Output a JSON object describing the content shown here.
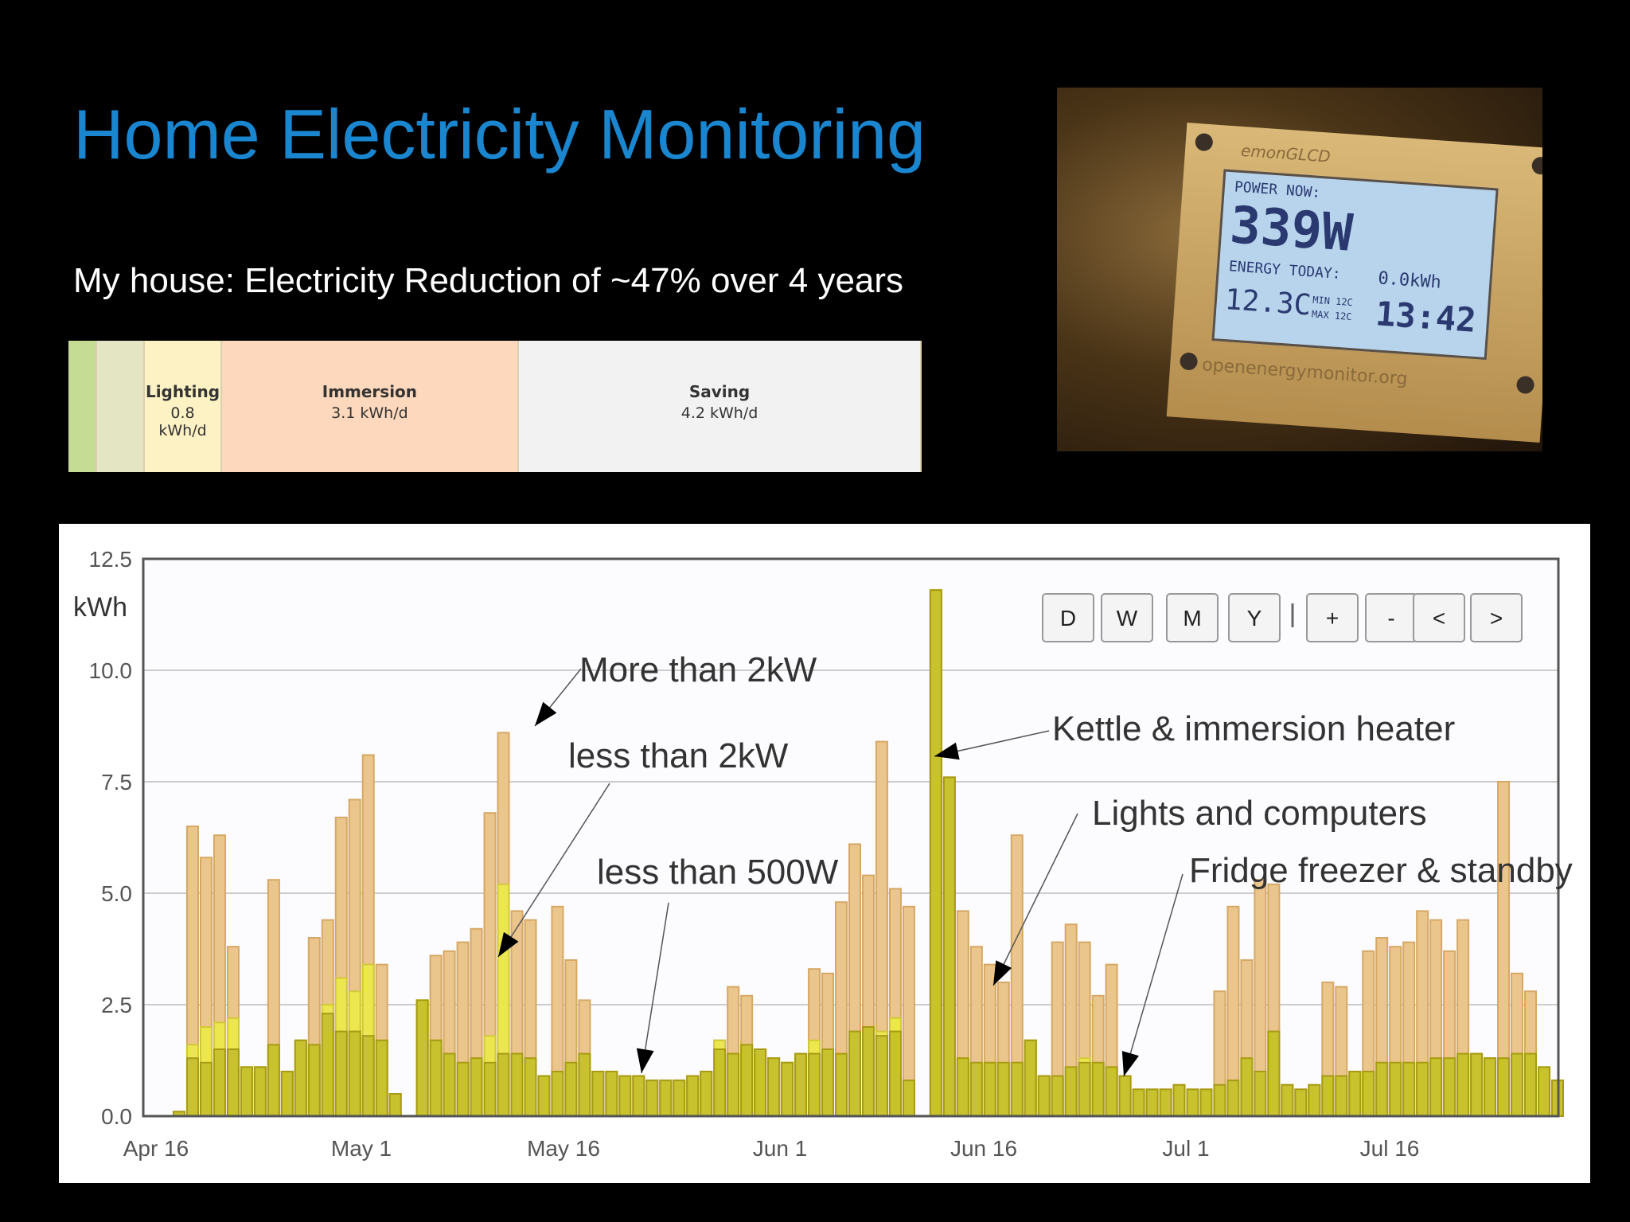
{
  "slide": {
    "title": "Home Electricity Monitoring",
    "subtitle": "My house: Electricity Reduction of ~47% over 4 years"
  },
  "breakdown": {
    "segments": [
      {
        "name": "",
        "value": "",
        "kwh": 0.3,
        "color": "#c5dc95"
      },
      {
        "name": "",
        "value": "",
        "kwh": 0.5,
        "color": "#e4e5c3"
      },
      {
        "name": "Lighting",
        "value": "0.8 kWh/d",
        "kwh": 0.8,
        "color": "#fdf2c4"
      },
      {
        "name": "Immersion",
        "value": "3.1 kWh/d",
        "kwh": 3.1,
        "color": "#fdd8bd"
      },
      {
        "name": "Saving",
        "value": "4.2 kWh/d",
        "kwh": 4.2,
        "color": "#f2f2f2"
      }
    ]
  },
  "photo": {
    "brand": "emonGLCD",
    "power_label": "POWER NOW:",
    "power_value": "339W",
    "energy_label": "ENERGY TODAY:",
    "energy_value": "0.0kWh",
    "temp": "12.3C",
    "min": "MIN 12C",
    "max": "MAX 12C",
    "time": "13:42",
    "url": "openenergymonitor.org"
  },
  "chart_data": {
    "type": "bar",
    "title": "",
    "xlabel": "",
    "ylabel": "kWh",
    "ylim": [
      0,
      12.5
    ],
    "yticks": [
      "0.0",
      "2.5",
      "5.0",
      "7.5",
      "10.0",
      "12.5"
    ],
    "x_tick_labels": [
      "Apr 16",
      "May 1",
      "May 16",
      "Jun 1",
      "Jun 16",
      "Jul 1",
      "Jul 16"
    ],
    "stacked": true,
    "series_colors": {
      "less than 500W": "#c7c22e",
      "less than 2kW": "#ece74f",
      "More than 2kW": "#ebc68c"
    },
    "bars": [
      {
        "day": 0,
        "low": 0.1,
        "mid": 0.1,
        "high": 0.1
      },
      {
        "day": 1,
        "low": 1.3,
        "mid": 1.6,
        "high": 6.5
      },
      {
        "day": 2,
        "low": 1.2,
        "mid": 2.0,
        "high": 5.8
      },
      {
        "day": 3,
        "low": 1.5,
        "mid": 2.1,
        "high": 6.3
      },
      {
        "day": 4,
        "low": 1.5,
        "mid": 2.2,
        "high": 3.8
      },
      {
        "day": 5,
        "low": 1.1,
        "mid": 1.1,
        "high": 1.1
      },
      {
        "day": 6,
        "low": 1.1,
        "mid": 1.1,
        "high": 1.1
      },
      {
        "day": 7,
        "low": 1.6,
        "mid": 1.6,
        "high": 5.3
      },
      {
        "day": 8,
        "low": 1.0,
        "mid": 1.0,
        "high": 1.0
      },
      {
        "day": 9,
        "low": 1.7,
        "mid": 1.7,
        "high": 1.7
      },
      {
        "day": 10,
        "low": 1.6,
        "mid": 1.6,
        "high": 4.0
      },
      {
        "day": 11,
        "low": 2.3,
        "mid": 2.5,
        "high": 4.4
      },
      {
        "day": 12,
        "low": 1.9,
        "mid": 3.1,
        "high": 6.7
      },
      {
        "day": 13,
        "low": 1.9,
        "mid": 2.8,
        "high": 7.1
      },
      {
        "day": 14,
        "low": 1.8,
        "mid": 3.4,
        "high": 8.1
      },
      {
        "day": 15,
        "low": 1.7,
        "mid": 1.7,
        "high": 3.4
      },
      {
        "day": 16,
        "low": 0.5,
        "mid": 0.5,
        "high": 0.5
      },
      {
        "day": 17,
        "low": null,
        "mid": null,
        "high": null
      },
      {
        "day": 18,
        "low": 2.6,
        "mid": 2.6,
        "high": 2.6
      },
      {
        "day": 19,
        "low": 1.7,
        "mid": 1.7,
        "high": 3.6
      },
      {
        "day": 20,
        "low": 1.4,
        "mid": 1.4,
        "high": 3.7
      },
      {
        "day": 21,
        "low": 1.2,
        "mid": 1.2,
        "high": 3.9
      },
      {
        "day": 22,
        "low": 1.3,
        "mid": 1.3,
        "high": 4.2
      },
      {
        "day": 23,
        "low": 1.2,
        "mid": 1.8,
        "high": 6.8
      },
      {
        "day": 24,
        "low": 1.4,
        "mid": 5.2,
        "high": 8.6
      },
      {
        "day": 25,
        "low": 1.4,
        "mid": 1.4,
        "high": 4.6
      },
      {
        "day": 26,
        "low": 1.3,
        "mid": 1.3,
        "high": 4.4
      },
      {
        "day": 27,
        "low": 0.9,
        "mid": 0.9,
        "high": 0.9
      },
      {
        "day": 28,
        "low": 1.0,
        "mid": 1.0,
        "high": 4.7
      },
      {
        "day": 29,
        "low": 1.2,
        "mid": 1.2,
        "high": 3.5
      },
      {
        "day": 30,
        "low": 1.4,
        "mid": 1.4,
        "high": 2.6
      },
      {
        "day": 31,
        "low": 1.0,
        "mid": 1.0,
        "high": 1.0
      },
      {
        "day": 32,
        "low": 1.0,
        "mid": 1.0,
        "high": 1.0
      },
      {
        "day": 33,
        "low": 0.9,
        "mid": 0.9,
        "high": 0.9
      },
      {
        "day": 34,
        "low": 0.9,
        "mid": 0.9,
        "high": 0.9
      },
      {
        "day": 35,
        "low": 0.8,
        "mid": 0.8,
        "high": 0.8
      },
      {
        "day": 36,
        "low": 0.8,
        "mid": 0.8,
        "high": 0.8
      },
      {
        "day": 37,
        "low": 0.8,
        "mid": 0.8,
        "high": 0.8
      },
      {
        "day": 38,
        "low": 0.9,
        "mid": 0.9,
        "high": 0.9
      },
      {
        "day": 39,
        "low": 1.0,
        "mid": 1.0,
        "high": 1.0
      },
      {
        "day": 40,
        "low": 1.5,
        "mid": 1.7,
        "high": 1.7
      },
      {
        "day": 41,
        "low": 1.4,
        "mid": 1.4,
        "high": 2.9
      },
      {
        "day": 42,
        "low": 1.6,
        "mid": 1.6,
        "high": 2.7
      },
      {
        "day": 43,
        "low": 1.5,
        "mid": 1.5,
        "high": 1.5
      },
      {
        "day": 44,
        "low": 1.3,
        "mid": 1.3,
        "high": 1.3
      },
      {
        "day": 45,
        "low": 1.2,
        "mid": 1.2,
        "high": 1.2
      },
      {
        "day": 46,
        "low": 1.4,
        "mid": 1.4,
        "high": 1.4
      },
      {
        "day": 47,
        "low": 1.4,
        "mid": 1.7,
        "high": 3.3
      },
      {
        "day": 48,
        "low": 1.5,
        "mid": 1.5,
        "high": 3.2
      },
      {
        "day": 49,
        "low": 1.4,
        "mid": 1.4,
        "high": 4.8
      },
      {
        "day": 50,
        "low": 1.9,
        "mid": 1.9,
        "high": 6.1
      },
      {
        "day": 51,
        "low": 2.0,
        "mid": 2.0,
        "high": 5.4
      },
      {
        "day": 52,
        "low": 1.8,
        "mid": 1.9,
        "high": 8.4
      },
      {
        "day": 53,
        "low": 1.9,
        "mid": 2.2,
        "high": 5.1
      },
      {
        "day": 54,
        "low": 0.8,
        "mid": 0.8,
        "high": 4.7
      },
      {
        "day": 55,
        "low": null,
        "mid": null,
        "high": null
      },
      {
        "day": 56,
        "low": 11.8,
        "mid": 11.8,
        "high": 11.8
      },
      {
        "day": 57,
        "low": 7.6,
        "mid": 7.6,
        "high": 7.6
      },
      {
        "day": 58,
        "low": 1.3,
        "mid": 1.3,
        "high": 4.6
      },
      {
        "day": 59,
        "low": 1.2,
        "mid": 1.2,
        "high": 3.8
      },
      {
        "day": 60,
        "low": 1.2,
        "mid": 1.2,
        "high": 3.4
      },
      {
        "day": 61,
        "low": 1.2,
        "mid": 1.2,
        "high": 3.0
      },
      {
        "day": 62,
        "low": 1.2,
        "mid": 1.2,
        "high": 6.3
      },
      {
        "day": 63,
        "low": 1.7,
        "mid": 1.7,
        "high": 1.7
      },
      {
        "day": 64,
        "low": 0.9,
        "mid": 0.9,
        "high": 0.9
      },
      {
        "day": 65,
        "low": 0.9,
        "mid": 0.9,
        "high": 3.9
      },
      {
        "day": 66,
        "low": 1.1,
        "mid": 1.1,
        "high": 4.3
      },
      {
        "day": 67,
        "low": 1.2,
        "mid": 1.3,
        "high": 3.9
      },
      {
        "day": 68,
        "low": 1.2,
        "mid": 1.2,
        "high": 2.7
      },
      {
        "day": 69,
        "low": 1.1,
        "mid": 1.1,
        "high": 3.4
      },
      {
        "day": 70,
        "low": 0.9,
        "mid": 0.9,
        "high": 0.9
      },
      {
        "day": 71,
        "low": 0.6,
        "mid": 0.6,
        "high": 0.6
      },
      {
        "day": 72,
        "low": 0.6,
        "mid": 0.6,
        "high": 0.6
      },
      {
        "day": 73,
        "low": 0.6,
        "mid": 0.6,
        "high": 0.6
      },
      {
        "day": 74,
        "low": 0.7,
        "mid": 0.7,
        "high": 0.7
      },
      {
        "day": 75,
        "low": 0.6,
        "mid": 0.6,
        "high": 0.6
      },
      {
        "day": 76,
        "low": 0.6,
        "mid": 0.6,
        "high": 0.6
      },
      {
        "day": 77,
        "low": 0.7,
        "mid": 0.7,
        "high": 2.8
      },
      {
        "day": 78,
        "low": 0.8,
        "mid": 0.8,
        "high": 4.7
      },
      {
        "day": 79,
        "low": 1.3,
        "mid": 1.3,
        "high": 3.5
      },
      {
        "day": 80,
        "low": 1.0,
        "mid": 1.0,
        "high": 5.3
      },
      {
        "day": 81,
        "low": 1.9,
        "mid": 1.9,
        "high": 5.2
      },
      {
        "day": 82,
        "low": 0.7,
        "mid": 0.7,
        "high": 0.7
      },
      {
        "day": 83,
        "low": 0.6,
        "mid": 0.6,
        "high": 0.6
      },
      {
        "day": 84,
        "low": 0.7,
        "mid": 0.7,
        "high": 0.7
      },
      {
        "day": 85,
        "low": 0.9,
        "mid": 0.9,
        "high": 3.0
      },
      {
        "day": 86,
        "low": 0.9,
        "mid": 0.9,
        "high": 2.9
      },
      {
        "day": 87,
        "low": 1.0,
        "mid": 1.0,
        "high": 1.0
      },
      {
        "day": 88,
        "low": 1.0,
        "mid": 1.0,
        "high": 3.7
      },
      {
        "day": 89,
        "low": 1.2,
        "mid": 1.2,
        "high": 4.0
      },
      {
        "day": 90,
        "low": 1.2,
        "mid": 1.2,
        "high": 3.8
      },
      {
        "day": 91,
        "low": 1.2,
        "mid": 1.2,
        "high": 3.9
      },
      {
        "day": 92,
        "low": 1.2,
        "mid": 1.2,
        "high": 4.6
      },
      {
        "day": 93,
        "low": 1.3,
        "mid": 1.3,
        "high": 4.4
      },
      {
        "day": 94,
        "low": 1.3,
        "mid": 1.3,
        "high": 3.7
      },
      {
        "day": 95,
        "low": 1.4,
        "mid": 1.4,
        "high": 4.4
      },
      {
        "day": 96,
        "low": 1.4,
        "mid": 1.4,
        "high": 1.4
      },
      {
        "day": 97,
        "low": 1.3,
        "mid": 1.3,
        "high": 1.3
      },
      {
        "day": 98,
        "low": 1.3,
        "mid": 1.3,
        "high": 7.5
      },
      {
        "day": 99,
        "low": 1.4,
        "mid": 1.4,
        "high": 3.2
      },
      {
        "day": 100,
        "low": 1.4,
        "mid": 1.4,
        "high": 2.8
      },
      {
        "day": 101,
        "low": 1.1,
        "mid": 1.1,
        "high": 1.1
      },
      {
        "day": 102,
        "low": 0.8,
        "mid": 0.8,
        "high": 0.8
      }
    ],
    "annotations": [
      {
        "text": "More than 2kW"
      },
      {
        "text": "less than 2kW"
      },
      {
        "text": "less than 500W"
      },
      {
        "text": "Kettle & immersion heater"
      },
      {
        "text": "Lights and computers"
      },
      {
        "text": "Fridge freezer & standby"
      }
    ],
    "buttons": [
      "D",
      "W",
      "M",
      "Y",
      "+",
      "-",
      "<",
      ">"
    ]
  }
}
